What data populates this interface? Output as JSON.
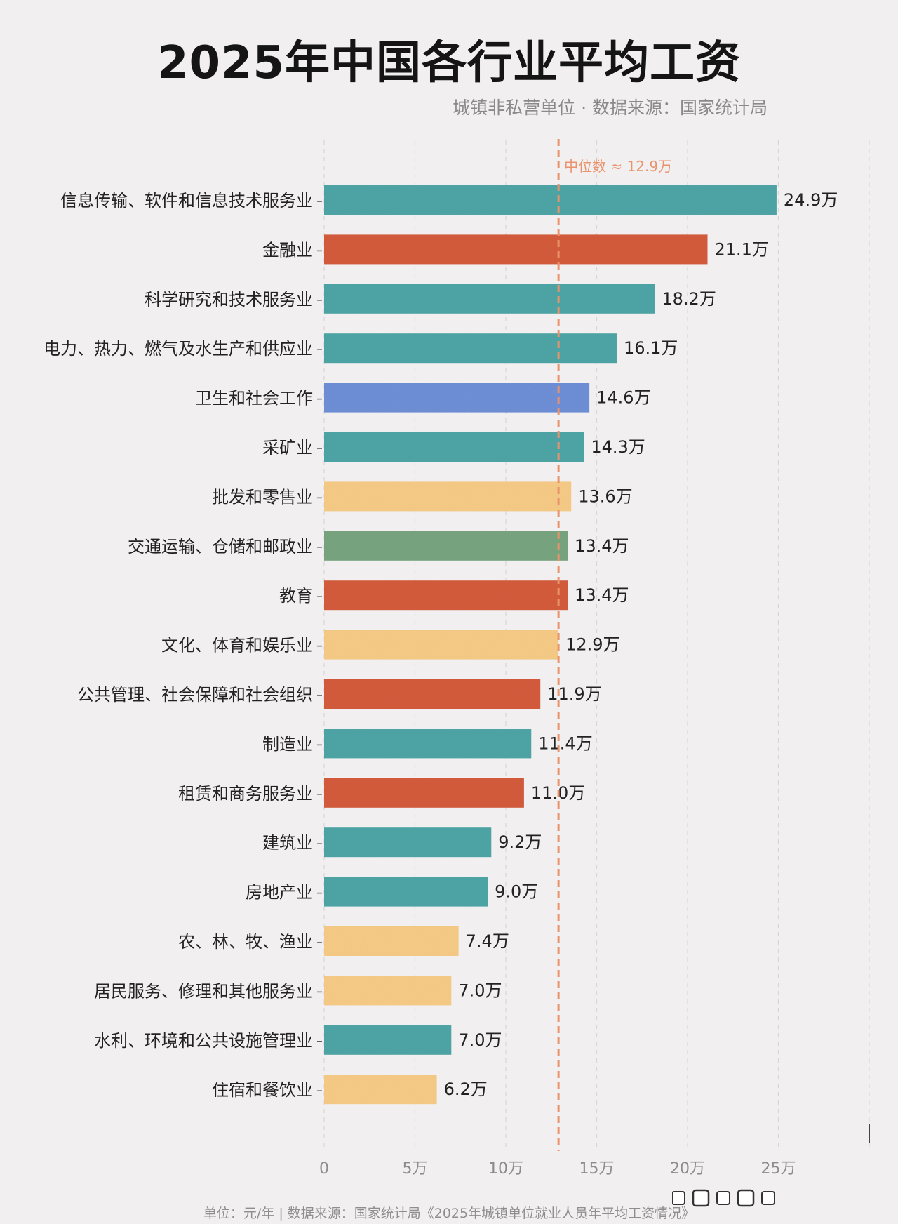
{
  "title": "2025年中国各行业平均工资",
  "subtitle": "城镇非私营单位 · 数据来源：国家统计局",
  "footer": "单位：元/年 | 数据来源：国家统计局《2025年城镇单位就业人员年平均工资情况》",
  "colors": {
    "teal": "#4ea5a6",
    "red": "#d35b3c",
    "blue": "#6e8fd6",
    "yellow": "#f6cb86",
    "green": "#77a47e",
    "median": "#e9936c",
    "grid": "#d9d6d6",
    "axis_text": "#8c8c8c"
  },
  "chart_data": {
    "type": "bar",
    "orientation": "horizontal",
    "categories": [
      "信息传输、软件和信息技术服务业",
      "金融业",
      "科学研究和技术服务业",
      "电力、热力、燃气及水生产和供应业",
      "卫生和社会工作",
      "采矿业",
      "批发和零售业",
      "交通运输、仓储和邮政业",
      "教育",
      "文化、体育和娱乐业",
      "公共管理、社会保障和社会组织",
      "制造业",
      "租赁和商务服务业",
      "建筑业",
      "房地产业",
      "农、林、牧、渔业",
      "居民服务、修理和其他服务业",
      "水利、环境和公共设施管理业",
      "住宿和餐饮业"
    ],
    "values": [
      24.9,
      21.1,
      18.2,
      16.1,
      14.6,
      14.3,
      13.6,
      13.4,
      13.4,
      12.9,
      11.9,
      11.4,
      11.0,
      9.2,
      9.0,
      7.4,
      7.0,
      7.0,
      6.2
    ],
    "value_labels": [
      "24.9万",
      "21.1万",
      "18.2万",
      "16.1万",
      "14.6万",
      "14.3万",
      "13.6万",
      "13.4万",
      "13.4万",
      "12.9万",
      "11.9万",
      "11.4万",
      "11.0万",
      "9.2万",
      "9.0万",
      "7.4万",
      "7.0万",
      "7.0万",
      "6.2万"
    ],
    "bar_colors": [
      "teal",
      "red",
      "teal",
      "teal",
      "blue",
      "teal",
      "yellow",
      "green",
      "red",
      "yellow",
      "red",
      "teal",
      "red",
      "teal",
      "teal",
      "yellow",
      "yellow",
      "teal",
      "yellow"
    ],
    "xticks": [
      0,
      5,
      10,
      15,
      20,
      25
    ],
    "xtick_labels": [
      "0",
      "5万",
      "10万",
      "15万",
      "20万",
      "25万"
    ],
    "xlim": [
      0,
      30
    ],
    "median": {
      "value": 12.9,
      "label": "中位数 ≈ 12.9万"
    },
    "grid": true
  }
}
